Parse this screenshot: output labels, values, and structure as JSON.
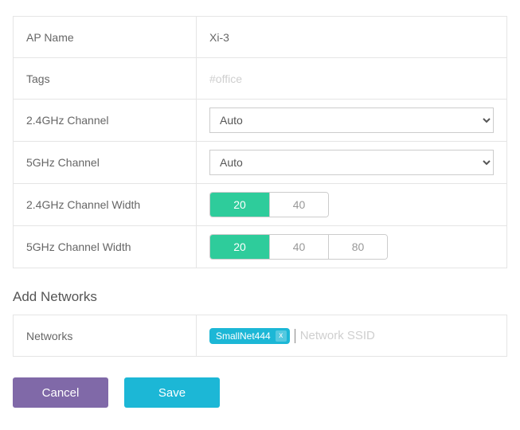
{
  "colors": {
    "border": "#e5e5e5",
    "seg_active_bg": "#2ecc9b",
    "tag_bg": "#1cb7d6",
    "btn_cancel_bg": "#8069a8",
    "btn_save_bg": "#1cb7d6",
    "placeholder": "#cfcfcf",
    "text": "#666666"
  },
  "form": {
    "ap_name": {
      "label": "AP Name",
      "value": "Xi-3"
    },
    "tags": {
      "label": "Tags",
      "placeholder": "#office"
    },
    "ch24": {
      "label": "2.4GHz Channel",
      "selected": "Auto",
      "options": [
        "Auto"
      ]
    },
    "ch5": {
      "label": "5GHz Channel",
      "selected": "Auto",
      "options": [
        "Auto"
      ]
    },
    "width24": {
      "label": "2.4GHz Channel Width",
      "options": [
        "20",
        "40"
      ],
      "active": "20"
    },
    "width5": {
      "label": "5GHz Channel Width",
      "options": [
        "20",
        "40",
        "80"
      ],
      "active": "20"
    }
  },
  "networks": {
    "section_title": "Add Networks",
    "label": "Networks",
    "tags": [
      {
        "label": "SmallNet444"
      }
    ],
    "input_placeholder": "Network SSID"
  },
  "buttons": {
    "cancel": "Cancel",
    "save": "Save"
  }
}
